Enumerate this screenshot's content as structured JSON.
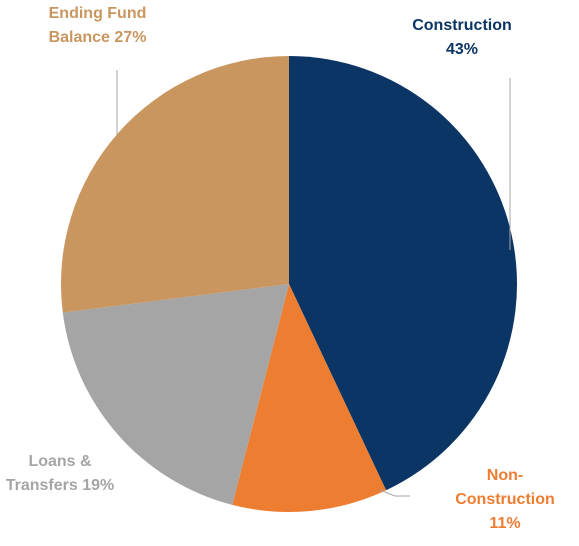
{
  "chart_data": {
    "type": "pie",
    "categories": [
      "Construction",
      "Non-Construction",
      "Loans & Transfers",
      "Ending Fund Balance"
    ],
    "values": [
      43,
      11,
      19,
      27
    ],
    "value_labels": [
      "43%",
      "11%",
      "19%",
      "27%"
    ],
    "colors": [
      "#0b3564",
      "#ed7d31",
      "#a5a5a5",
      "#c9965f"
    ]
  }
}
